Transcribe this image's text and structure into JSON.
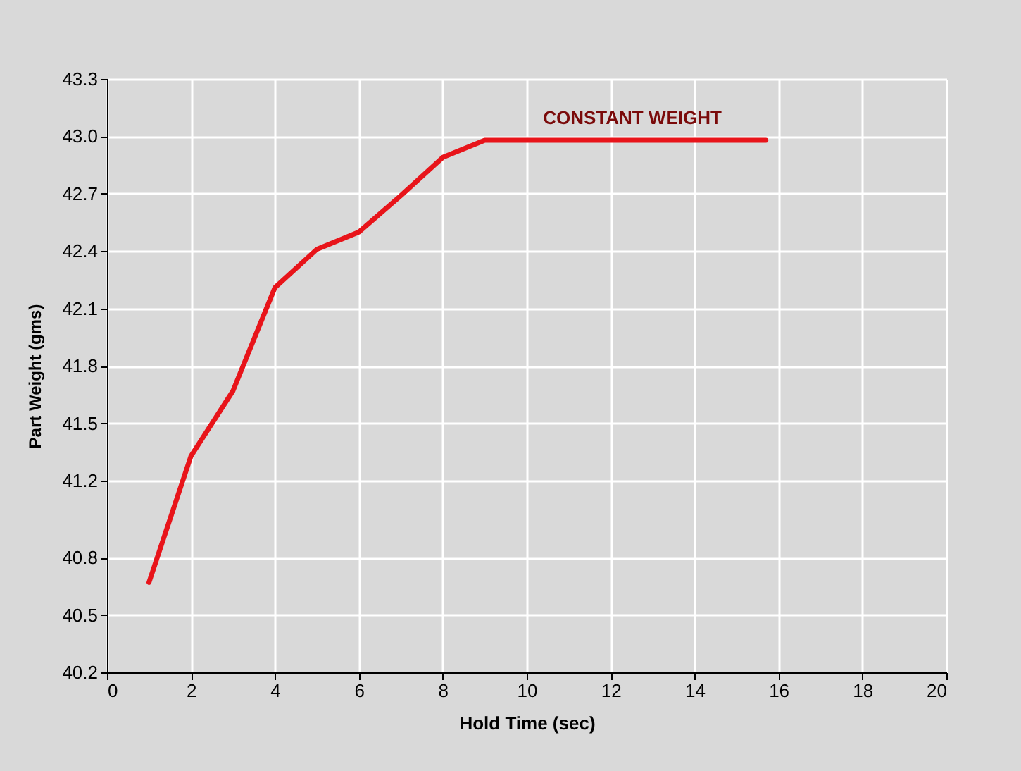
{
  "chart_data": {
    "type": "line",
    "xlabel": "Hold Time (sec)",
    "ylabel": "Part Weight (gms)",
    "x": [
      1,
      2,
      3,
      4,
      5,
      6,
      7,
      8,
      9,
      15.7
    ],
    "series": [
      {
        "color": "#e8141a",
        "values": [
          40.67,
          41.33,
          41.67,
          42.21,
          42.41,
          42.5,
          42.69,
          42.89,
          42.98,
          42.98
        ]
      }
    ],
    "xlim": [
      0,
      20
    ],
    "xticks": [
      0,
      2,
      4,
      6,
      8,
      10,
      12,
      14,
      16,
      18,
      20
    ],
    "ylim": [
      40.2,
      43.3
    ],
    "yticks": [
      40.2,
      40.5,
      40.8,
      41.2,
      41.5,
      41.8,
      42.1,
      42.4,
      42.7,
      {
        "value": 43.0,
        "label": "43.0"
      },
      43.3
    ],
    "annotations": [
      "CONSTANT WEIGHT"
    ],
    "grid": true,
    "marker": "none",
    "line_style": "solid"
  }
}
